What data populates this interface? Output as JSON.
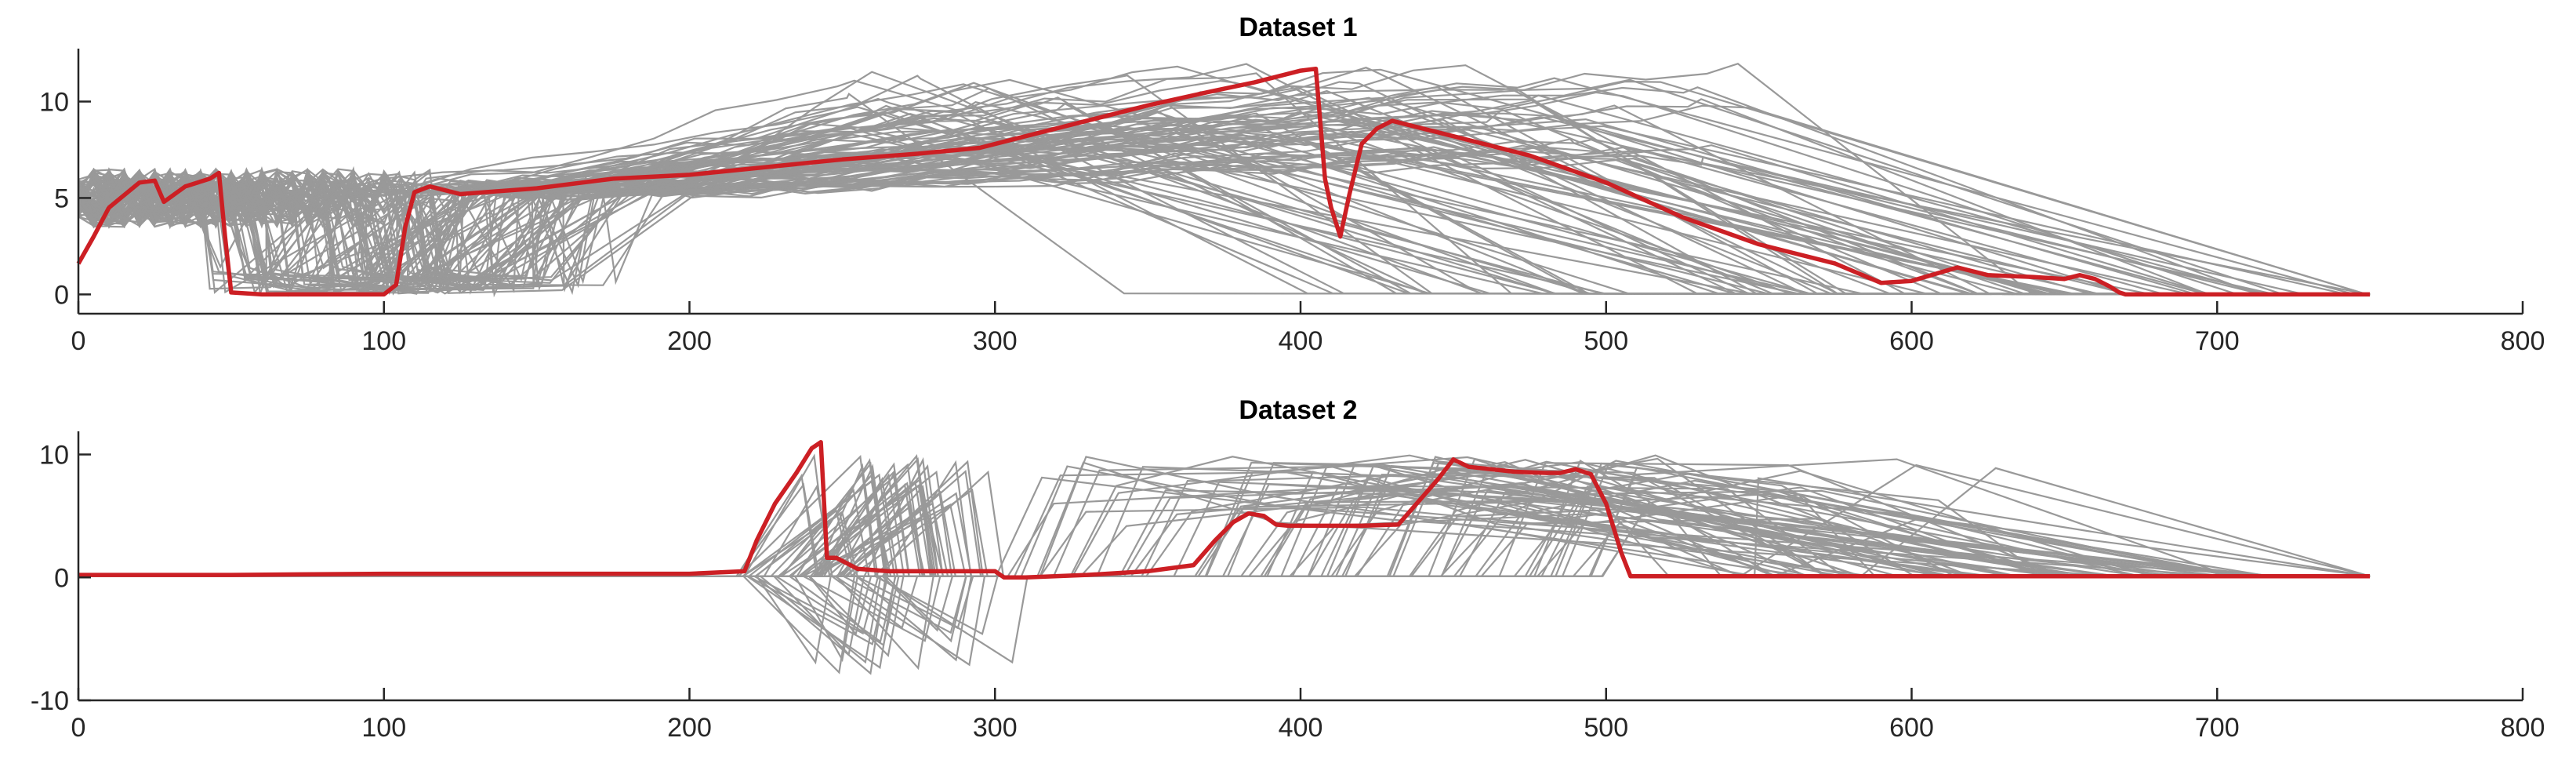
{
  "chart_data": [
    {
      "type": "line",
      "title": "Dataset 1",
      "xlabel": "",
      "ylabel": "",
      "xlim": [
        0,
        800
      ],
      "ylim": [
        -1,
        12.5
      ],
      "xticks": [
        0,
        100,
        200,
        300,
        400,
        500,
        600,
        700,
        800
      ],
      "yticks": [
        0,
        5,
        10
      ],
      "grid": false,
      "gray_color": "#999999",
      "highlight_color": "#cc1f24",
      "highlight_series": {
        "x": [
          0,
          5,
          10,
          20,
          25,
          28,
          35,
          43,
          46,
          48,
          50,
          60,
          80,
          100,
          104,
          107,
          110,
          115,
          125,
          150,
          175,
          200,
          225,
          250,
          275,
          295,
          310,
          330,
          350,
          370,
          385,
          400,
          405,
          408,
          410,
          413,
          416,
          420,
          425,
          430,
          450,
          475,
          500,
          525,
          550,
          575,
          590,
          600,
          615,
          625,
          640,
          650,
          655,
          660,
          665,
          668,
          670,
          700,
          750
        ],
        "y": [
          1.6,
          3.0,
          4.5,
          5.8,
          5.9,
          4.8,
          5.6,
          6.0,
          6.3,
          3.0,
          0.1,
          0.0,
          0.0,
          0.0,
          0.5,
          3.5,
          5.3,
          5.6,
          5.2,
          5.5,
          6.0,
          6.2,
          6.6,
          7.0,
          7.3,
          7.6,
          8.2,
          9.0,
          9.8,
          10.5,
          11.0,
          11.6,
          11.7,
          6.0,
          4.5,
          3.0,
          5.2,
          7.8,
          8.6,
          9.0,
          8.2,
          7.2,
          5.8,
          4.0,
          2.6,
          1.6,
          0.6,
          0.7,
          1.4,
          1.0,
          0.9,
          0.8,
          1.0,
          0.8,
          0.4,
          0.1,
          0.0,
          0.0,
          0.0
        ]
      }
    },
    {
      "type": "line",
      "title": "Dataset 2",
      "xlabel": "",
      "ylabel": "",
      "xlim": [
        0,
        800
      ],
      "ylim": [
        -10,
        11.5
      ],
      "xticks": [
        0,
        100,
        200,
        300,
        400,
        500,
        600,
        700,
        800
      ],
      "yticks": [
        -10,
        0,
        10
      ],
      "grid": false,
      "gray_color": "#999999",
      "highlight_color": "#cc1f24",
      "highlight_series": {
        "x": [
          0,
          50,
          100,
          150,
          200,
          218,
          222,
          228,
          235,
          240,
          243,
          245,
          248,
          255,
          265,
          280,
          300,
          303,
          310,
          330,
          350,
          365,
          372,
          378,
          383,
          388,
          392,
          396,
          400,
          420,
          432,
          438,
          445,
          450,
          455,
          470,
          480,
          485,
          490,
          495,
          500,
          505,
          508,
          510,
          550,
          600,
          650,
          700,
          750
        ],
        "y": [
          0.2,
          0.2,
          0.3,
          0.3,
          0.3,
          0.5,
          3.0,
          6.0,
          8.5,
          10.5,
          11.0,
          1.6,
          1.6,
          0.7,
          0.5,
          0.5,
          0.5,
          0.0,
          0.0,
          0.2,
          0.5,
          1.0,
          3.0,
          4.5,
          5.2,
          5.0,
          4.3,
          4.2,
          4.2,
          4.2,
          4.3,
          6.0,
          8.0,
          9.6,
          9.0,
          8.6,
          8.5,
          8.5,
          8.8,
          8.4,
          6.0,
          2.0,
          0.1,
          0.1,
          0.1,
          0.1,
          0.1,
          0.1,
          0.1
        ]
      }
    }
  ]
}
